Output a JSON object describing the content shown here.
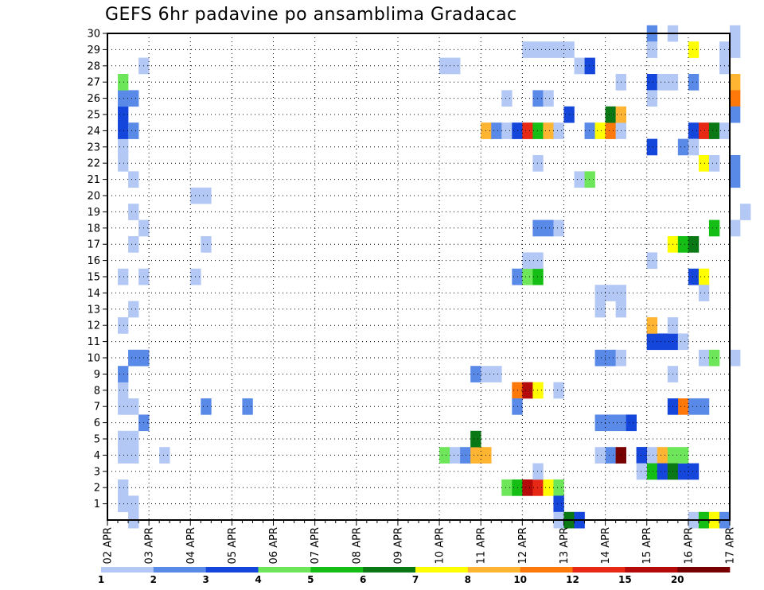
{
  "chart_data": {
    "type": "heatmap",
    "title": "GEFS 6hr padavine po ansamblima Gradacac",
    "y_ticks": [
      "1",
      "2",
      "3",
      "4",
      "5",
      "6",
      "7",
      "8",
      "9",
      "10",
      "11",
      "12",
      "13",
      "14",
      "15",
      "16",
      "17",
      "18",
      "19",
      "20",
      "21",
      "22",
      "23",
      "24",
      "25",
      "26",
      "27",
      "28",
      "29",
      "30"
    ],
    "x_ticks": [
      "02 APR",
      "03 APR",
      "04 APR",
      "05 APR",
      "06 APR",
      "07 APR",
      "08 APR",
      "09 APR",
      "10 APR",
      "11 APR",
      "12 APR",
      "13 APR",
      "14 APR",
      "15 APR",
      "16 APR",
      "17 APR"
    ],
    "y_range": [
      0,
      30
    ],
    "x_range": [
      "02 APR 00Z",
      "17 APR 00Z"
    ],
    "grid": true,
    "colorbar": {
      "labels": [
        "1",
        "2",
        "3",
        "4",
        "5",
        "6",
        "7",
        "8",
        "10",
        "12",
        "15",
        "20"
      ],
      "colors": [
        "#b4c8f5",
        "#5a8ae8",
        "#1446dc",
        "#6ee65a",
        "#14be14",
        "#0a7814",
        "#ffff00",
        "#ffb432",
        "#ff780a",
        "#e62814",
        "#b40a0a",
        "#780000"
      ]
    },
    "cells": [
      {
        "t": 0.25,
        "m": 1,
        "l": 0
      },
      {
        "t": 0.25,
        "m": 2,
        "l": 0
      },
      {
        "t": 0.25,
        "m": 4,
        "l": 0
      },
      {
        "t": 0.25,
        "m": 5,
        "l": 0
      },
      {
        "t": 0.5,
        "m": 4,
        "l": 0
      },
      {
        "t": 0.5,
        "m": 5,
        "l": 0
      },
      {
        "t": 0.25,
        "m": 7,
        "l": 0
      },
      {
        "t": 0.5,
        "m": 7,
        "l": 0
      },
      {
        "t": 0.25,
        "m": 8,
        "l": 0
      },
      {
        "t": 0.25,
        "m": 9,
        "l": 1
      },
      {
        "t": 0.5,
        "m": 10,
        "l": 1
      },
      {
        "t": 0.75,
        "m": 10,
        "l": 1
      },
      {
        "t": 0.5,
        "m": 13,
        "l": 0
      },
      {
        "t": 0.25,
        "m": 12,
        "l": 0
      },
      {
        "t": 0.25,
        "m": 15,
        "l": 0
      },
      {
        "t": 0.75,
        "m": 15,
        "l": 0
      },
      {
        "t": 0.5,
        "m": 17,
        "l": 0
      },
      {
        "t": 0.75,
        "m": 18,
        "l": 0
      },
      {
        "t": 0.5,
        "m": 19,
        "l": 0
      },
      {
        "t": 0.5,
        "m": 21,
        "l": 0
      },
      {
        "t": 0.25,
        "m": 22,
        "l": 0
      },
      {
        "t": 0.25,
        "m": 23,
        "l": 0
      },
      {
        "t": 0.25,
        "m": 24,
        "l": 2
      },
      {
        "t": 0.5,
        "m": 24,
        "l": 1
      },
      {
        "t": 0.25,
        "m": 25,
        "l": 2
      },
      {
        "t": 0.25,
        "m": 26,
        "l": 1
      },
      {
        "t": 0.5,
        "m": 26,
        "l": 1
      },
      {
        "t": 0.25,
        "m": 27,
        "l": 3
      },
      {
        "t": 0.75,
        "m": 28,
        "l": 0
      },
      {
        "t": 0.5,
        "m": 0,
        "l": 0
      },
      {
        "t": 0.5,
        "m": 1,
        "l": 0
      },
      {
        "t": 0.75,
        "m": 6,
        "l": 1
      },
      {
        "t": 1.25,
        "m": 4,
        "l": 0
      },
      {
        "t": 2.25,
        "m": 7,
        "l": 1
      },
      {
        "t": 2.25,
        "m": 17,
        "l": 0
      },
      {
        "t": 2,
        "m": 15,
        "l": 0
      },
      {
        "t": 2,
        "m": 20,
        "l": 0
      },
      {
        "t": 2.25,
        "m": 20,
        "l": 0
      },
      {
        "t": 3.25,
        "m": 7,
        "l": 1
      },
      {
        "t": 8,
        "m": 28,
        "l": 0
      },
      {
        "t": 8.25,
        "m": 28,
        "l": 0
      },
      {
        "t": 8,
        "m": 4,
        "l": 3
      },
      {
        "t": 8.25,
        "m": 4,
        "l": 0
      },
      {
        "t": 8.5,
        "m": 4,
        "l": 1
      },
      {
        "t": 8.75,
        "m": 4,
        "l": 7
      },
      {
        "t": 9,
        "m": 4,
        "l": 7
      },
      {
        "t": 8.75,
        "m": 5,
        "l": 5
      },
      {
        "t": 8.75,
        "m": 9,
        "l": 1
      },
      {
        "t": 9,
        "m": 9,
        "l": 0
      },
      {
        "t": 9.25,
        "m": 9,
        "l": 0
      },
      {
        "t": 9,
        "m": 24,
        "l": 7
      },
      {
        "t": 9.25,
        "m": 24,
        "l": 1
      },
      {
        "t": 9.5,
        "m": 24,
        "l": 0
      },
      {
        "t": 9.75,
        "m": 24,
        "l": 2
      },
      {
        "t": 10,
        "m": 24,
        "l": 9
      },
      {
        "t": 10.25,
        "m": 24,
        "l": 4
      },
      {
        "t": 10.5,
        "m": 24,
        "l": 7
      },
      {
        "t": 10.75,
        "m": 24,
        "l": 0
      },
      {
        "t": 9.5,
        "m": 26,
        "l": 0
      },
      {
        "t": 10.25,
        "m": 26,
        "l": 1
      },
      {
        "t": 10.5,
        "m": 26,
        "l": 0
      },
      {
        "t": 9.75,
        "m": 15,
        "l": 1
      },
      {
        "t": 10,
        "m": 15,
        "l": 3
      },
      {
        "t": 10.25,
        "m": 15,
        "l": 4
      },
      {
        "t": 10,
        "m": 16,
        "l": 0
      },
      {
        "t": 10.25,
        "m": 16,
        "l": 0
      },
      {
        "t": 9.75,
        "m": 8,
        "l": 8
      },
      {
        "t": 10,
        "m": 8,
        "l": 10
      },
      {
        "t": 10.25,
        "m": 8,
        "l": 6
      },
      {
        "t": 10.75,
        "m": 8,
        "l": 0
      },
      {
        "t": 9.75,
        "m": 7,
        "l": 1
      },
      {
        "t": 9.5,
        "m": 2,
        "l": 3
      },
      {
        "t": 9.75,
        "m": 2,
        "l": 4
      },
      {
        "t": 10,
        "m": 2,
        "l": 10
      },
      {
        "t": 10.25,
        "m": 2,
        "l": 9
      },
      {
        "t": 10.5,
        "m": 2,
        "l": 6
      },
      {
        "t": 10.75,
        "m": 2,
        "l": 3
      },
      {
        "t": 10.25,
        "m": 3,
        "l": 0
      },
      {
        "t": 10.75,
        "m": 1,
        "l": 2
      },
      {
        "t": 10.75,
        "m": 0,
        "l": 0
      },
      {
        "t": 11,
        "m": 0,
        "l": 5
      },
      {
        "t": 11.25,
        "m": 0,
        "l": 2
      },
      {
        "t": 10.25,
        "m": 18,
        "l": 1
      },
      {
        "t": 10.5,
        "m": 18,
        "l": 1
      },
      {
        "t": 10.75,
        "m": 18,
        "l": 0
      },
      {
        "t": 10.25,
        "m": 22,
        "l": 0
      },
      {
        "t": 10,
        "m": 29,
        "l": 0
      },
      {
        "t": 10.25,
        "m": 29,
        "l": 0
      },
      {
        "t": 10.5,
        "m": 29,
        "l": 0
      },
      {
        "t": 10.75,
        "m": 29,
        "l": 0
      },
      {
        "t": 11,
        "m": 29,
        "l": 0
      },
      {
        "t": 11,
        "m": 25,
        "l": 2
      },
      {
        "t": 11.25,
        "m": 28,
        "l": 0
      },
      {
        "t": 11.5,
        "m": 28,
        "l": 2
      },
      {
        "t": 11.25,
        "m": 21,
        "l": 0
      },
      {
        "t": 11.5,
        "m": 21,
        "l": 3
      },
      {
        "t": 11.5,
        "m": 24,
        "l": 1
      },
      {
        "t": 11.75,
        "m": 24,
        "l": 6
      },
      {
        "t": 12,
        "m": 24,
        "l": 8
      },
      {
        "t": 12.25,
        "m": 24,
        "l": 0
      },
      {
        "t": 12,
        "m": 25,
        "l": 5
      },
      {
        "t": 12.25,
        "m": 25,
        "l": 7
      },
      {
        "t": 12.25,
        "m": 27,
        "l": 0
      },
      {
        "t": 12,
        "m": 14,
        "l": 0
      },
      {
        "t": 12.25,
        "m": 14,
        "l": 0
      },
      {
        "t": 12.25,
        "m": 13,
        "l": 0
      },
      {
        "t": 12,
        "m": 10,
        "l": 1
      },
      {
        "t": 12.25,
        "m": 10,
        "l": 0
      },
      {
        "t": 12,
        "m": 6,
        "l": 1
      },
      {
        "t": 12.25,
        "m": 6,
        "l": 1
      },
      {
        "t": 12.5,
        "m": 6,
        "l": 2
      },
      {
        "t": 12,
        "m": 4,
        "l": 1
      },
      {
        "t": 12.25,
        "m": 4,
        "l": 11
      },
      {
        "t": 12.75,
        "m": 4,
        "l": 2
      },
      {
        "t": 13,
        "m": 4,
        "l": 0
      },
      {
        "t": 13.25,
        "m": 4,
        "l": 7
      },
      {
        "t": 13.5,
        "m": 4,
        "l": 3
      },
      {
        "t": 13,
        "m": 3,
        "l": 4
      },
      {
        "t": 13.25,
        "m": 3,
        "l": 2
      },
      {
        "t": 13.5,
        "m": 3,
        "l": 5
      },
      {
        "t": 14,
        "m": 3,
        "l": 2
      },
      {
        "t": 13,
        "m": 11,
        "l": 2
      },
      {
        "t": 13.25,
        "m": 11,
        "l": 2
      },
      {
        "t": 13.5,
        "m": 11,
        "l": 2
      },
      {
        "t": 13,
        "m": 12,
        "l": 7
      },
      {
        "t": 13.5,
        "m": 12,
        "l": 0
      },
      {
        "t": 13,
        "m": 16,
        "l": 0
      },
      {
        "t": 13.5,
        "m": 9,
        "l": 0
      },
      {
        "t": 13.5,
        "m": 17,
        "l": 6
      },
      {
        "t": 13.75,
        "m": 17,
        "l": 4
      },
      {
        "t": 14,
        "m": 17,
        "l": 5
      },
      {
        "t": 13.75,
        "m": 7,
        "l": 8
      },
      {
        "t": 13.5,
        "m": 7,
        "l": 2
      },
      {
        "t": 14,
        "m": 7,
        "l": 1
      },
      {
        "t": 14.25,
        "m": 7,
        "l": 1
      },
      {
        "t": 14,
        "m": 15,
        "l": 2
      },
      {
        "t": 14.25,
        "m": 15,
        "l": 6
      },
      {
        "t": 14.25,
        "m": 14,
        "l": 0
      },
      {
        "t": 14.25,
        "m": 10,
        "l": 0
      },
      {
        "t": 14.5,
        "m": 10,
        "l": 3
      },
      {
        "t": 14,
        "m": 24,
        "l": 2
      },
      {
        "t": 14.25,
        "m": 24,
        "l": 9
      },
      {
        "t": 14.5,
        "m": 24,
        "l": 5
      },
      {
        "t": 14.75,
        "m": 24,
        "l": 0
      },
      {
        "t": 14.25,
        "m": 22,
        "l": 6
      },
      {
        "t": 14.5,
        "m": 22,
        "l": 0
      },
      {
        "t": 15,
        "m": 22,
        "l": 1
      },
      {
        "t": 13,
        "m": 23,
        "l": 2
      },
      {
        "t": 13.75,
        "m": 23,
        "l": 1
      },
      {
        "t": 14,
        "m": 23,
        "l": 0
      },
      {
        "t": 13,
        "m": 27,
        "l": 2
      },
      {
        "t": 13.25,
        "m": 27,
        "l": 0
      },
      {
        "t": 13.5,
        "m": 27,
        "l": 0
      },
      {
        "t": 14,
        "m": 27,
        "l": 1
      },
      {
        "t": 13,
        "m": 26,
        "l": 0
      },
      {
        "t": 14.5,
        "m": 18,
        "l": 4
      },
      {
        "t": 15,
        "m": 18,
        "l": 0
      },
      {
        "t": 13,
        "m": 30,
        "l": 1
      },
      {
        "t": 13.5,
        "m": 30,
        "l": 0
      },
      {
        "t": 13,
        "m": 29,
        "l": 0
      },
      {
        "t": 14,
        "m": 29,
        "l": 6
      },
      {
        "t": 14.75,
        "m": 29,
        "l": 0
      },
      {
        "t": 15,
        "m": 29,
        "l": 0
      },
      {
        "t": 14.75,
        "m": 28,
        "l": 0
      },
      {
        "t": 15,
        "m": 27,
        "l": 7
      },
      {
        "t": 15,
        "m": 26,
        "l": 8
      },
      {
        "t": 15,
        "m": 25,
        "l": 1
      },
      {
        "t": 14,
        "m": 0,
        "l": 0
      },
      {
        "t": 14.25,
        "m": 0,
        "l": 4
      },
      {
        "t": 14.5,
        "m": 0,
        "l": 6
      },
      {
        "t": 14.75,
        "m": 0,
        "l": 1
      },
      {
        "t": 15,
        "m": 10,
        "l": 0
      },
      {
        "t": 15.25,
        "m": 19,
        "l": 0
      },
      {
        "t": 15,
        "m": 21,
        "l": 1
      },
      {
        "t": 15,
        "m": 30,
        "l": 0
      },
      {
        "t": 11.75,
        "m": 14,
        "l": 0
      },
      {
        "t": 11.75,
        "m": 13,
        "l": 0
      },
      {
        "t": 11.75,
        "m": 6,
        "l": 1
      },
      {
        "t": 11.75,
        "m": 10,
        "l": 1
      },
      {
        "t": 11.75,
        "m": 4,
        "l": 0
      },
      {
        "t": 12.75,
        "m": 4,
        "l": 2
      },
      {
        "t": 12.75,
        "m": 3,
        "l": 0
      },
      {
        "t": 13.75,
        "m": 11,
        "l": 0
      },
      {
        "t": 13.75,
        "m": 3,
        "l": 2
      },
      {
        "t": 13.75,
        "m": 4,
        "l": 3
      }
    ]
  }
}
